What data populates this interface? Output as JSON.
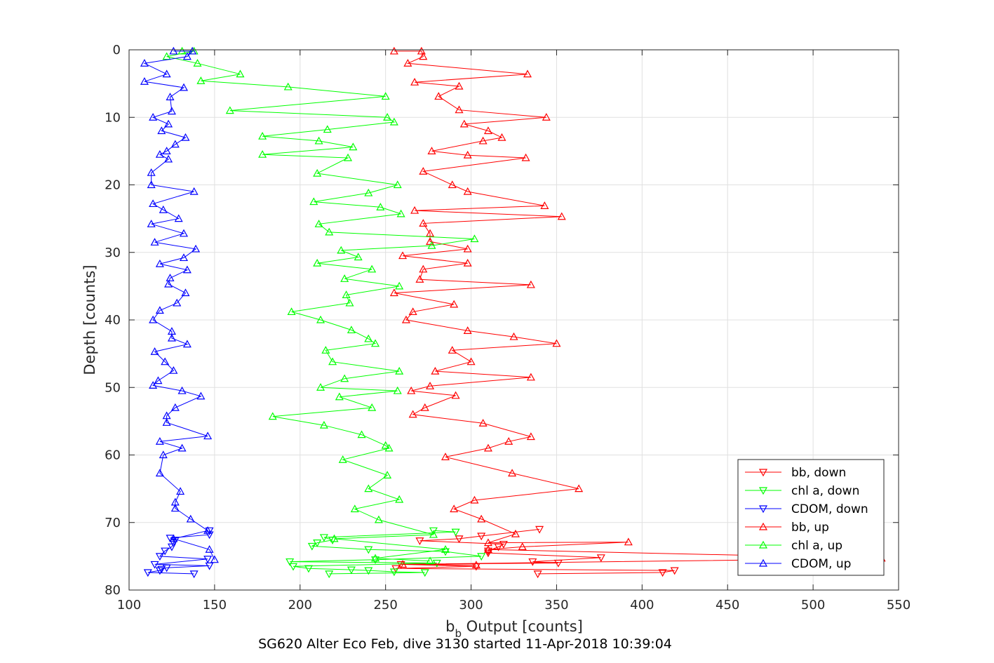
{
  "chart_data": {
    "type": "line",
    "title": "",
    "xlabel_main": "b",
    "xlabel_sub": "b",
    "xlabel_rest": " Output [counts]",
    "ylabel": "Depth [counts]",
    "subtitle": "SG620 Alter Eco Feb, dive 3130 started 11-Apr-2018 10:39:04",
    "xlim": [
      100,
      550
    ],
    "ylim": [
      0,
      80
    ],
    "y_reversed": true,
    "grid": true,
    "legend_position": "bottom-right",
    "xticks": [
      100,
      150,
      200,
      250,
      300,
      350,
      400,
      450,
      500,
      550
    ],
    "yticks": [
      0,
      10,
      20,
      30,
      40,
      50,
      60,
      70,
      80
    ],
    "series": [
      {
        "name": "bb, down",
        "color": "#ff0000",
        "marker": "down",
        "points": [
          [
            340,
            71
          ],
          [
            306,
            72
          ],
          [
            293,
            72.4
          ],
          [
            270,
            72.7
          ],
          [
            319,
            73.2
          ],
          [
            316,
            73.6
          ],
          [
            310,
            74.2
          ],
          [
            310,
            74.5
          ],
          [
            376,
            75.2
          ],
          [
            336,
            75.8
          ],
          [
            351,
            76
          ],
          [
            259,
            76.2
          ],
          [
            303,
            76.5
          ],
          [
            256,
            76.8
          ],
          [
            419,
            77.1
          ],
          [
            412,
            77.4
          ],
          [
            339,
            77.6
          ]
        ]
      },
      {
        "name": "chl a, down",
        "color": "#00ff00",
        "marker": "down",
        "points": [
          [
            278,
            71.2
          ],
          [
            291,
            71.4
          ],
          [
            214,
            72.2
          ],
          [
            219,
            72.6
          ],
          [
            210,
            73
          ],
          [
            207,
            73.5
          ],
          [
            240,
            74
          ],
          [
            285,
            74.3
          ],
          [
            306,
            75
          ],
          [
            244,
            75.5
          ],
          [
            194,
            75.8
          ],
          [
            280,
            76
          ],
          [
            196,
            76.5
          ],
          [
            205,
            76.8
          ],
          [
            230,
            77
          ],
          [
            240,
            77.1
          ],
          [
            255,
            77.3
          ],
          [
            273,
            77.4
          ],
          [
            217,
            77.6
          ]
        ]
      },
      {
        "name": "CDOM, down",
        "color": "#0000ff",
        "marker": "down",
        "points": [
          [
            147,
            71.2
          ],
          [
            147,
            71.8
          ],
          [
            124,
            72.3
          ],
          [
            127,
            72.6
          ],
          [
            126,
            73
          ],
          [
            125,
            73.6
          ],
          [
            121,
            74.2
          ],
          [
            118,
            75
          ],
          [
            146,
            75.4
          ],
          [
            115,
            76.2
          ],
          [
            147,
            76.4
          ],
          [
            122,
            76.7
          ],
          [
            119,
            76.9
          ],
          [
            118,
            77.1
          ],
          [
            111,
            77.4
          ],
          [
            138,
            77.6
          ]
        ]
      },
      {
        "name": "bb, up",
        "color": "#ff0000",
        "marker": "up",
        "points": [
          [
            255,
            0.2
          ],
          [
            271,
            0.2
          ],
          [
            272,
            1
          ],
          [
            263,
            2
          ],
          [
            333,
            3.6
          ],
          [
            267,
            4.8
          ],
          [
            293,
            5.4
          ],
          [
            281,
            6.9
          ],
          [
            293,
            8.9
          ],
          [
            344,
            10
          ],
          [
            296,
            11
          ],
          [
            310,
            12
          ],
          [
            318,
            13
          ],
          [
            307,
            13.5
          ],
          [
            277,
            15
          ],
          [
            298,
            15.6
          ],
          [
            332,
            16
          ],
          [
            272,
            18
          ],
          [
            289,
            20
          ],
          [
            298,
            21
          ],
          [
            343,
            23.1
          ],
          [
            267,
            23.8
          ],
          [
            353,
            24.7
          ],
          [
            272,
            25.7
          ],
          [
            276,
            27.2
          ],
          [
            276,
            28.4
          ],
          [
            298,
            29.5
          ],
          [
            260,
            30.5
          ],
          [
            298,
            31.6
          ],
          [
            272,
            32.5
          ],
          [
            270,
            34
          ],
          [
            335,
            34.8
          ],
          [
            255,
            36
          ],
          [
            290,
            37.7
          ],
          [
            266,
            38.8
          ],
          [
            262,
            40
          ],
          [
            298,
            41.6
          ],
          [
            325,
            42.5
          ],
          [
            350,
            43.5
          ],
          [
            289,
            44.5
          ],
          [
            300,
            46.2
          ],
          [
            279,
            47.6
          ],
          [
            335,
            48.5
          ],
          [
            276,
            49.8
          ],
          [
            265,
            50.5
          ],
          [
            291,
            51.2
          ],
          [
            273,
            53
          ],
          [
            266,
            54
          ],
          [
            307,
            55.3
          ],
          [
            335,
            57.3
          ],
          [
            322,
            58
          ],
          [
            310,
            59
          ],
          [
            285,
            60.3
          ],
          [
            324,
            62.7
          ],
          [
            363,
            65
          ],
          [
            302,
            66.7
          ],
          [
            290,
            68
          ],
          [
            306,
            69.5
          ],
          [
            326,
            71.7
          ],
          [
            310,
            73
          ],
          [
            392,
            72.9
          ],
          [
            330,
            73.6
          ],
          [
            310,
            74
          ],
          [
            540,
            75.3
          ],
          [
            260,
            76.2
          ],
          [
            303,
            76.3
          ]
        ]
      },
      {
        "name": "chl a, up",
        "color": "#00ff00",
        "marker": "up",
        "points": [
          [
            131,
            0.2
          ],
          [
            138,
            0.2
          ],
          [
            122,
            1
          ],
          [
            140,
            2
          ],
          [
            165,
            3.6
          ],
          [
            142,
            4.6
          ],
          [
            193,
            5.5
          ],
          [
            250,
            6.9
          ],
          [
            159,
            9
          ],
          [
            251,
            10
          ],
          [
            255,
            10.7
          ],
          [
            216,
            11.8
          ],
          [
            178,
            12.8
          ],
          [
            211,
            13.5
          ],
          [
            231,
            14.4
          ],
          [
            178,
            15.5
          ],
          [
            228,
            16
          ],
          [
            210,
            18.3
          ],
          [
            257,
            20
          ],
          [
            240,
            21.2
          ],
          [
            208,
            22.5
          ],
          [
            247,
            23.3
          ],
          [
            259,
            24.3
          ],
          [
            211,
            25.8
          ],
          [
            217,
            27
          ],
          [
            302,
            28
          ],
          [
            277,
            29
          ],
          [
            224,
            29.7
          ],
          [
            234,
            30.7
          ],
          [
            210,
            31.6
          ],
          [
            242,
            32.5
          ],
          [
            226,
            33.9
          ],
          [
            258,
            35
          ],
          [
            227,
            36.3
          ],
          [
            229,
            37.5
          ],
          [
            195,
            38.8
          ],
          [
            212,
            40
          ],
          [
            230,
            41.5
          ],
          [
            240,
            42.8
          ],
          [
            244,
            43.5
          ],
          [
            215,
            44.5
          ],
          [
            219,
            46.2
          ],
          [
            258,
            47.6
          ],
          [
            226,
            48.7
          ],
          [
            212,
            50
          ],
          [
            257,
            50.5
          ],
          [
            223,
            51.4
          ],
          [
            242,
            53
          ],
          [
            184,
            54.3
          ],
          [
            214,
            55.6
          ],
          [
            236,
            57
          ],
          [
            250,
            58.6
          ],
          [
            252,
            59
          ],
          [
            225,
            60.7
          ],
          [
            251,
            63
          ],
          [
            240,
            65
          ],
          [
            258,
            66.6
          ],
          [
            232,
            68
          ],
          [
            246,
            69.6
          ],
          [
            278,
            71.8
          ],
          [
            220,
            72.4
          ],
          [
            285,
            74
          ],
          [
            244,
            75.3
          ],
          [
            276,
            75.7
          ]
        ]
      },
      {
        "name": "CDOM, up",
        "color": "#0000ff",
        "marker": "up",
        "points": [
          [
            126,
            0.2
          ],
          [
            137,
            0.2
          ],
          [
            134,
            1
          ],
          [
            109,
            2
          ],
          [
            122,
            3.6
          ],
          [
            109,
            4.7
          ],
          [
            132,
            5.6
          ],
          [
            124,
            7
          ],
          [
            125,
            9.1
          ],
          [
            114,
            10
          ],
          [
            123,
            11
          ],
          [
            119,
            12
          ],
          [
            133,
            13
          ],
          [
            127,
            14
          ],
          [
            122,
            15
          ],
          [
            118,
            15.5
          ],
          [
            123,
            16.2
          ],
          [
            113,
            18.2
          ],
          [
            113,
            20
          ],
          [
            138,
            21
          ],
          [
            114,
            22.8
          ],
          [
            120,
            23.7
          ],
          [
            129,
            25
          ],
          [
            113,
            25.8
          ],
          [
            132,
            27.2
          ],
          [
            115,
            28.5
          ],
          [
            139,
            29.5
          ],
          [
            132,
            30.8
          ],
          [
            118,
            31.7
          ],
          [
            134,
            32.6
          ],
          [
            124,
            33.8
          ],
          [
            123,
            34.7
          ],
          [
            133,
            36
          ],
          [
            128,
            37.5
          ],
          [
            118,
            38.6
          ],
          [
            114,
            40
          ],
          [
            125,
            41.7
          ],
          [
            125,
            42.7
          ],
          [
            134,
            43.6
          ],
          [
            115,
            44.7
          ],
          [
            121,
            46.2
          ],
          [
            126,
            47.5
          ],
          [
            117,
            49
          ],
          [
            114,
            49.7
          ],
          [
            131,
            50.5
          ],
          [
            142,
            51.3
          ],
          [
            127,
            53
          ],
          [
            122,
            54.2
          ],
          [
            122,
            55.2
          ],
          [
            146,
            57.2
          ],
          [
            118,
            58
          ],
          [
            131,
            59
          ],
          [
            120,
            60
          ],
          [
            118,
            62.7
          ],
          [
            130,
            65.4
          ],
          [
            127,
            67
          ],
          [
            127,
            67.9
          ],
          [
            136,
            69.5
          ],
          [
            146,
            71.2
          ],
          [
            126,
            72.4
          ],
          [
            147,
            74
          ],
          [
            150,
            75.5
          ]
        ]
      }
    ]
  }
}
